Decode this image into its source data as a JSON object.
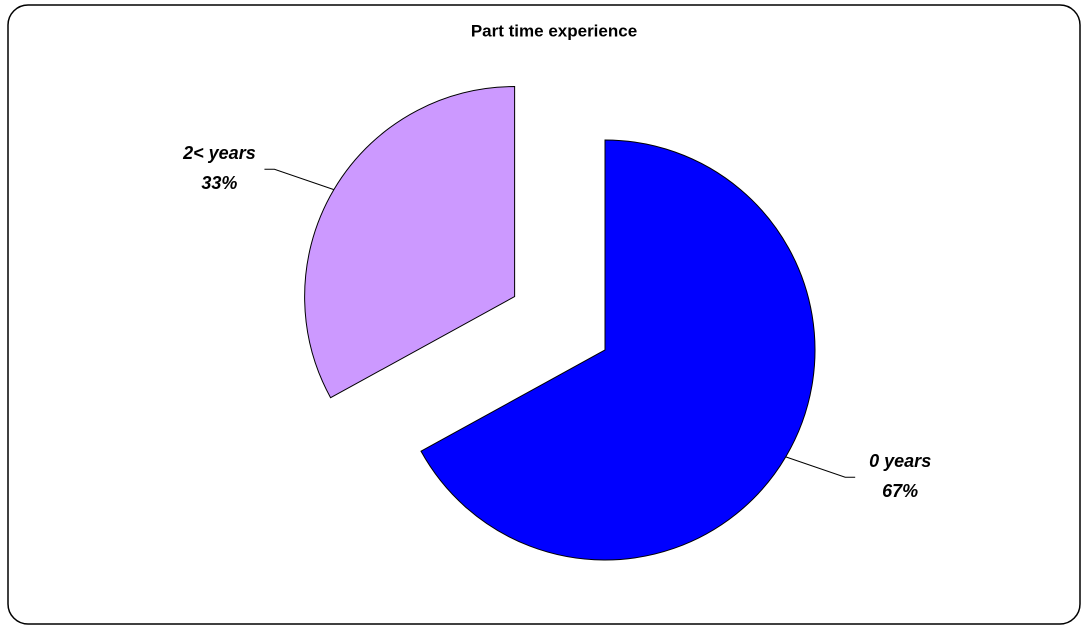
{
  "chart_data": {
    "type": "pie",
    "title": "Part time experience",
    "categories": [
      "0 years",
      "2< years"
    ],
    "values": [
      67,
      33
    ],
    "value_labels": [
      "67%",
      "33%"
    ],
    "colors": [
      "#0000ff",
      "#cc99ff"
    ],
    "explode": [
      false,
      true
    ]
  }
}
